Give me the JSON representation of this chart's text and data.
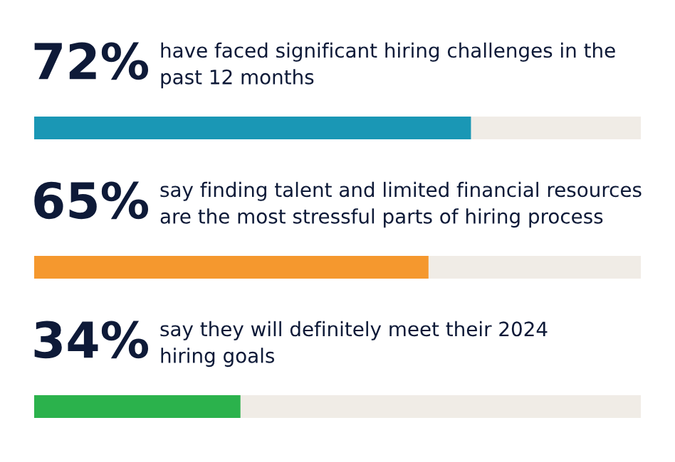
{
  "chart_data": {
    "type": "bar",
    "orientation": "horizontal",
    "categories": [
      "have faced significant hiring challenges in the\npast 12 months",
      "say finding talent and limited financial resources\nare the most stressful parts of hiring process",
      "say they will definitely meet their 2024\nhiring goals"
    ],
    "values": [
      72,
      65,
      34
    ],
    "colors": [
      "#1a97b5",
      "#f5982e",
      "#2bb24c"
    ],
    "value_labels": [
      "72%",
      "65%",
      "34%"
    ],
    "xlim": [
      0,
      100
    ],
    "tick_labels": false
  }
}
